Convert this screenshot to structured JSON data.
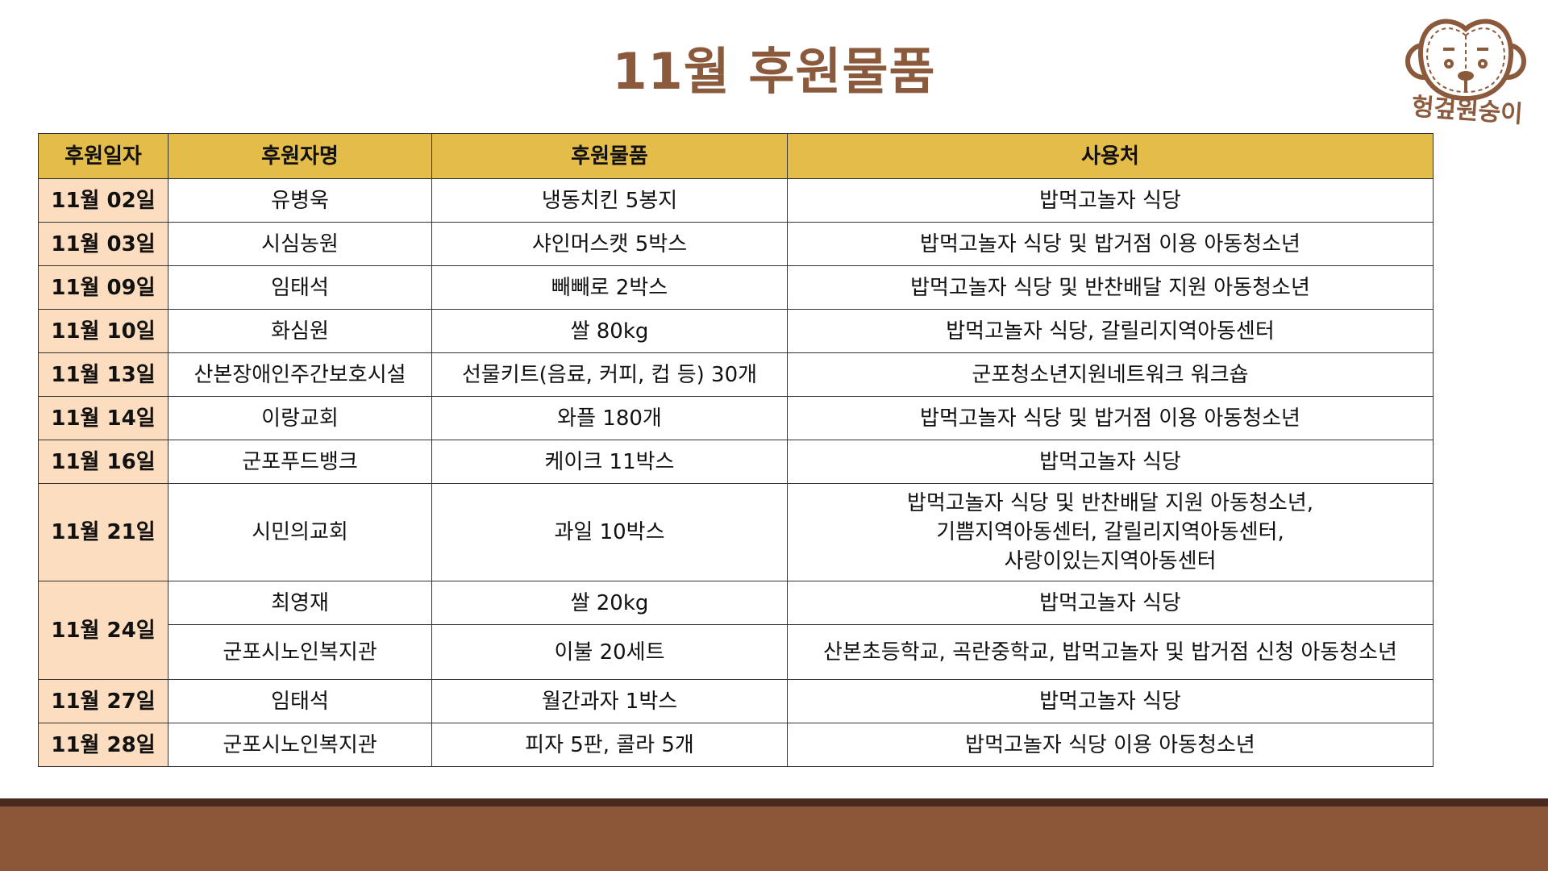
{
  "title": "11월 후원물품",
  "logo": {
    "text": "헝겊원숭이",
    "icon": "monkey-face-icon",
    "color": "#8B5A3C"
  },
  "colors": {
    "header": "#E3BC4A",
    "date_column": "#FDDDBF",
    "title": "#8B5A3C",
    "footer": "#8B5738"
  },
  "table": {
    "headers": [
      "후원일자",
      "후원자명",
      "후원물품",
      "사용처"
    ],
    "rows": [
      {
        "date": "11월 02일",
        "donor": "유병욱",
        "item": "냉동치킨 5봉지",
        "usage": "밥먹고놀자 식당"
      },
      {
        "date": "11월 03일",
        "donor": "시심농원",
        "item": "샤인머스캣 5박스",
        "usage": "밥먹고놀자 식당 및 밥거점 이용 아동청소년"
      },
      {
        "date": "11월 09일",
        "donor": "임태석",
        "item": "빼빼로 2박스",
        "usage": "밥먹고놀자 식당 및 반찬배달 지원 아동청소년"
      },
      {
        "date": "11월 10일",
        "donor": "화심원",
        "item": "쌀 80kg",
        "usage": "밥먹고놀자 식당, 갈릴리지역아동센터"
      },
      {
        "date": "11월 13일",
        "donor": "산본장애인주간보호시설",
        "item": "선물키트(음료, 커피, 컵 등) 30개",
        "usage": "군포청소년지원네트워크 워크숍"
      },
      {
        "date": "11월 14일",
        "donor": "이랑교회",
        "item": "와플 180개",
        "usage": "밥먹고놀자 식당 및 밥거점 이용 아동청소년"
      },
      {
        "date": "11월 16일",
        "donor": "군포푸드뱅크",
        "item": "케이크 11박스",
        "usage": "밥먹고놀자 식당"
      },
      {
        "date": "11월 21일",
        "donor": "시민의교회",
        "item": "과일 10박스",
        "usage": "밥먹고놀자 식당 및 반찬배달 지원 아동청소년,\n기쁨지역아동센터, 갈릴리지역아동센터,\n사랑이있는지역아동센터"
      },
      {
        "date": "11월 24일",
        "donor": "최영재",
        "item": "쌀 20kg",
        "usage": "밥먹고놀자 식당"
      },
      {
        "date": "",
        "donor": "군포시노인복지관",
        "item": "이불 20세트",
        "usage": "산본초등학교, 곡란중학교, 밥먹고놀자 및 밥거점 신청 아동청소년"
      },
      {
        "date": "11월 27일",
        "donor": "임태석",
        "item": "월간과자 1박스",
        "usage": "밥먹고놀자 식당"
      },
      {
        "date": "11월 28일",
        "donor": "군포시노인복지관",
        "item": "피자 5판, 콜라 5개",
        "usage": "밥먹고놀자 식당 이용 아동청소년"
      }
    ]
  }
}
